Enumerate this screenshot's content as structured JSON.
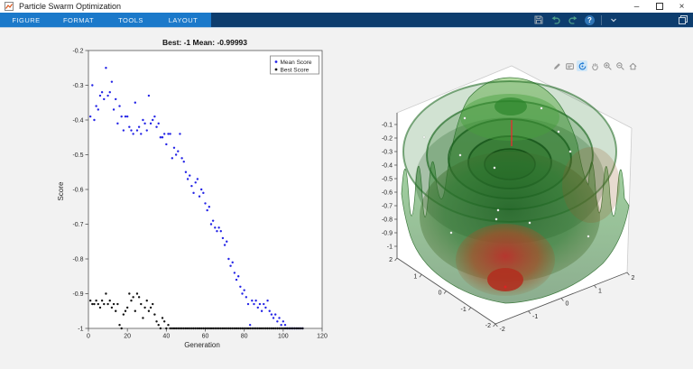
{
  "window": {
    "title": "Particle Swarm Optimization",
    "minimize_glyph": "–",
    "close_glyph": "×"
  },
  "ribbon": {
    "tabs": [
      {
        "id": "figure",
        "label": "FIGURE"
      },
      {
        "id": "format",
        "label": "FORMAT"
      },
      {
        "id": "tools",
        "label": "TOOLS"
      },
      {
        "id": "layout",
        "label": "LAYOUT"
      }
    ],
    "help_glyph": "?",
    "icons": [
      "save",
      "undo",
      "redo",
      "help",
      "dropdown",
      "copy"
    ]
  },
  "axes_toolbar": {
    "icons": [
      "brush",
      "datatips",
      "rotate3d",
      "pan",
      "zoom-in",
      "zoom-out",
      "restore-view"
    ],
    "active": "rotate3d"
  },
  "colors": {
    "ribbon_light": "#1b79ca",
    "ribbon_dark": "#0d3d6e",
    "mean_score": "#2323e6",
    "best_score": "#111111",
    "accent_blue": "#1976d2"
  },
  "chart_data": [
    {
      "type": "scatter",
      "title": "Best: -1 Mean: -0.99993",
      "xlabel": "Generation",
      "ylabel": "Score",
      "xlim": [
        0,
        120
      ],
      "ylim": [
        -1,
        -0.2
      ],
      "xticks": [
        "0",
        "20",
        "40",
        "60",
        "80",
        "100",
        "120"
      ],
      "yticks": [
        "-0.2",
        "-0.3",
        "-0.4",
        "-0.5",
        "-0.6",
        "-0.7",
        "-0.8",
        "-0.9",
        "-1"
      ],
      "legend": {
        "position": "northeast",
        "entries": [
          {
            "label": "Mean Score",
            "color": "#2323e6"
          },
          {
            "label": "Best Score",
            "color": "#111111"
          }
        ]
      },
      "series": [
        {
          "name": "Mean Score",
          "color": "#2323e6",
          "gen_start": 1,
          "y": [
            -0.39,
            -0.3,
            -0.4,
            -0.36,
            -0.37,
            -0.33,
            -0.32,
            -0.34,
            -0.25,
            -0.33,
            -0.32,
            -0.29,
            -0.37,
            -0.34,
            -0.41,
            -0.36,
            -0.39,
            -0.43,
            -0.39,
            -0.39,
            -0.42,
            -0.43,
            -0.44,
            -0.35,
            -0.43,
            -0.42,
            -0.44,
            -0.4,
            -0.41,
            -0.43,
            -0.33,
            -0.41,
            -0.4,
            -0.39,
            -0.42,
            -0.41,
            -0.45,
            -0.45,
            -0.44,
            -0.47,
            -0.44,
            -0.44,
            -0.51,
            -0.48,
            -0.5,
            -0.49,
            -0.44,
            -0.51,
            -0.52,
            -0.55,
            -0.57,
            -0.56,
            -0.59,
            -0.61,
            -0.58,
            -0.57,
            -0.62,
            -0.6,
            -0.61,
            -0.64,
            -0.66,
            -0.65,
            -0.7,
            -0.69,
            -0.71,
            -0.72,
            -0.71,
            -0.72,
            -0.74,
            -0.76,
            -0.75,
            -0.8,
            -0.82,
            -0.81,
            -0.84,
            -0.86,
            -0.85,
            -0.88,
            -0.9,
            -0.89,
            -0.91,
            -0.93,
            -0.99,
            -0.92,
            -0.93,
            -0.92,
            -0.94,
            -0.93,
            -0.95,
            -0.93,
            -0.94,
            -0.92,
            -0.95,
            -0.96,
            -0.97,
            -0.96,
            -0.98,
            -0.97,
            -0.99,
            -0.98,
            -0.99,
            -1,
            -1,
            -1,
            -1,
            -1,
            -1,
            -1,
            -1,
            -1
          ]
        },
        {
          "name": "Best Score",
          "color": "#111111",
          "gen_start": 1,
          "y": [
            -0.92,
            -0.93,
            -0.93,
            -0.92,
            -0.93,
            -0.94,
            -0.92,
            -0.93,
            -0.9,
            -0.93,
            -0.92,
            -0.94,
            -0.93,
            -0.95,
            -0.93,
            -0.99,
            -1,
            -0.96,
            -0.95,
            -0.94,
            -0.9,
            -0.92,
            -0.91,
            -0.95,
            -0.9,
            -0.91,
            -0.93,
            -0.97,
            -0.94,
            -0.92,
            -0.95,
            -0.94,
            -0.93,
            -0.96,
            -0.98,
            -0.99,
            -1,
            -0.97,
            -0.98,
            -1,
            -0.99,
            -1,
            -1,
            -1,
            -1,
            -1,
            -1,
            -1,
            -1,
            -1,
            -1,
            -1,
            -1,
            -1,
            -1,
            -1,
            -1,
            -1,
            -1,
            -1,
            -1,
            -1,
            -1,
            -1,
            -1,
            -1,
            -1,
            -1,
            -1,
            -1,
            -1,
            -1,
            -1,
            -1,
            -1,
            -1,
            -1,
            -1,
            -1,
            -1,
            -1,
            -1,
            -1,
            -1,
            -1,
            -1,
            -1,
            -1,
            -1,
            -1,
            -1,
            -1,
            -1,
            -1,
            -1,
            -1,
            -1,
            -1,
            -1,
            -1,
            -1,
            -1,
            -1,
            -1,
            -1,
            -1,
            -1,
            -1,
            -1,
            -1
          ]
        }
      ]
    },
    {
      "type": "surface3d",
      "description": "Translucent green drop-wave objective function surface with red minimum basin and particle markers",
      "xlim": [
        -2,
        2
      ],
      "ylim": [
        -2,
        2
      ],
      "zlim": [
        -1,
        0
      ],
      "zticks": [
        "-0.1",
        "-0.2",
        "-0.3",
        "-0.4",
        "-0.5",
        "-0.6",
        "-0.7",
        "-0.8",
        "-0.9",
        "-1"
      ],
      "xticks": [
        "2",
        "1",
        "0",
        "-1",
        "-2"
      ],
      "yticks": [
        "-2",
        "-1",
        "0",
        "1",
        "2"
      ]
    }
  ]
}
